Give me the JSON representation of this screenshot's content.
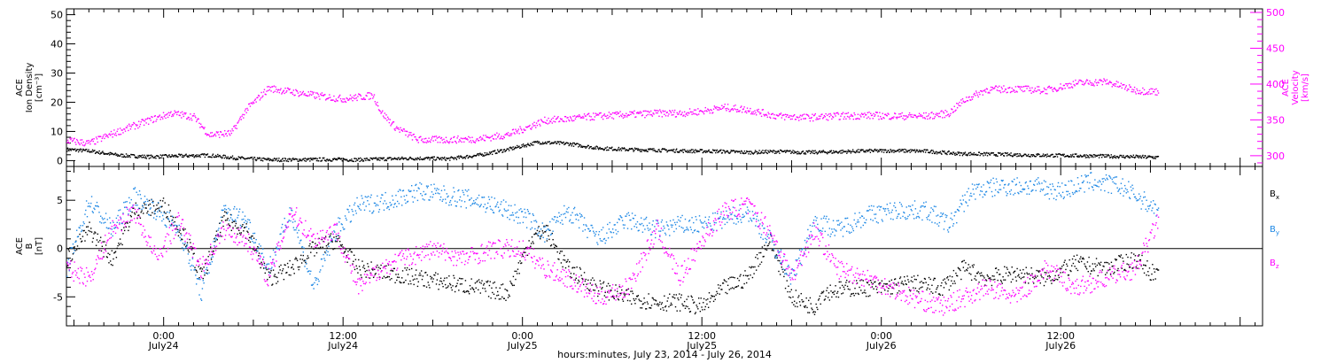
{
  "colors": {
    "black": "#000000",
    "magenta": "#ff00ff",
    "blue": "#1e88e5",
    "frame": "#000000"
  },
  "xlabel": "hours:minutes, July 23, 2014 - July 26, 2014",
  "x_ticks": [
    {
      "time": "0:00",
      "date": "July24",
      "hour": 24
    },
    {
      "time": "12:00",
      "date": "July24",
      "hour": 36
    },
    {
      "time": "0:00",
      "date": "July25",
      "hour": 48
    },
    {
      "time": "12:00",
      "date": "July25",
      "hour": 60
    },
    {
      "time": "0:00",
      "date": "July26",
      "hour": 72
    },
    {
      "time": "12:00",
      "date": "July26",
      "hour": 84
    }
  ],
  "chart_data": [
    {
      "type": "scatter",
      "panel": "top",
      "xlim_hours": [
        17.5,
        97.5
      ],
      "left_axis": {
        "label_lines": [
          "ACE",
          "Ion Density",
          "[cm⁻³]"
        ],
        "ylim": [
          -2,
          52
        ],
        "ticks": [
          0,
          10,
          20,
          30,
          40,
          50
        ],
        "color": "#000000"
      },
      "right_axis": {
        "label_lines": [
          "ACE",
          "Velocity",
          "[km/s]"
        ],
        "ylim": [
          285,
          505
        ],
        "ticks": [
          300,
          350,
          400,
          450,
          500
        ],
        "color": "#ff00ff"
      },
      "series": [
        {
          "name": "Ion Density",
          "axis": "left",
          "color": "#000000",
          "x": [
            17.5,
            19,
            21,
            23,
            25,
            27,
            29,
            31,
            33,
            35,
            37,
            39,
            41,
            43,
            45,
            47,
            49,
            51,
            53,
            55,
            57,
            59,
            61,
            63,
            65,
            67,
            69,
            71,
            73,
            75,
            77,
            79,
            81,
            83,
            85,
            87,
            89,
            90.5
          ],
          "y": [
            4,
            3.5,
            2,
            1.5,
            1.8,
            2,
            1,
            0.5,
            0.5,
            0.6,
            0.5,
            0.8,
            1,
            0.8,
            2,
            4,
            6.5,
            6,
            4.5,
            4,
            3.8,
            3.5,
            3.4,
            3,
            3.3,
            3,
            3.2,
            3.5,
            3.6,
            3.4,
            2.6,
            2.4,
            2.2,
            2,
            1.9,
            1.7,
            1.5,
            1.3
          ]
        },
        {
          "name": "Velocity",
          "axis": "right",
          "color": "#ff00ff",
          "x": [
            17.5,
            19,
            21,
            23,
            24.5,
            26,
            27,
            28.5,
            29.5,
            31,
            32.5,
            34,
            36,
            38,
            38.5,
            39.5,
            41,
            43,
            45,
            47,
            48.5,
            49.5,
            51,
            53,
            55,
            57,
            58.5,
            60,
            61.5,
            63,
            65,
            67,
            69,
            71,
            73,
            75,
            76.5,
            77.5,
            79,
            81,
            83,
            85,
            87,
            89,
            90.5
          ],
          "y": [
            322,
            318,
            335,
            350,
            360,
            355,
            330,
            332,
            365,
            395,
            390,
            385,
            380,
            385,
            362,
            340,
            323,
            323,
            324,
            330,
            342,
            350,
            352,
            356,
            358,
            360,
            360,
            363,
            368,
            365,
            356,
            354,
            356,
            357,
            356,
            356,
            360,
            378,
            393,
            394,
            392,
            402,
            404,
            392,
            390
          ]
        }
      ]
    },
    {
      "type": "scatter",
      "panel": "bottom",
      "xlim_hours": [
        17.5,
        97.5
      ],
      "ylabel_lines": [
        "ACE",
        "B",
        "[nT]"
      ],
      "ylim": [
        -8,
        8.5
      ],
      "ticks": [
        -5,
        0,
        5
      ],
      "zero_line": true,
      "legend_placement": "right",
      "series": [
        {
          "name": "Bx",
          "color": "#000000",
          "x": [
            17.5,
            19,
            20.5,
            22,
            24,
            25.5,
            26.5,
            28,
            29.5,
            31,
            32.5,
            34,
            35.5,
            37,
            39,
            41,
            43,
            45,
            47,
            48.5,
            49.5,
            51,
            53,
            55,
            57,
            58.5,
            60,
            61.5,
            63,
            64.5,
            66,
            67.5,
            68,
            70,
            72,
            74,
            76,
            77.5,
            79,
            81,
            83,
            85,
            87,
            89,
            90.5
          ],
          "y": [
            -1,
            2,
            -1,
            4,
            4.5,
            1,
            -3,
            3,
            2,
            -3,
            -2,
            0,
            1,
            -2,
            -2.5,
            -3,
            -3.5,
            -4,
            -4.5,
            1,
            2,
            -2,
            -4,
            -5,
            -5.5,
            -5.5,
            -6,
            -4,
            -3,
            1,
            -5,
            -6,
            -4.5,
            -4,
            -4,
            -3.5,
            -4,
            -2,
            -3,
            -2.5,
            -3,
            -1.5,
            -2,
            -1,
            -3
          ]
        },
        {
          "name": "By",
          "color": "#1e88e5",
          "x": [
            17.5,
            19,
            20.5,
            22,
            23.5,
            25,
            26.5,
            28,
            29.5,
            31,
            32.5,
            34,
            35.5,
            37,
            39,
            41,
            43,
            45,
            47,
            48.5,
            49.5,
            51,
            53,
            55,
            57,
            58.5,
            60,
            61.5,
            63,
            64.5,
            66,
            67.5,
            69,
            71,
            73,
            75,
            76.5,
            78,
            80,
            82,
            84,
            86,
            88,
            90.5
          ],
          "y": [
            -2,
            5,
            2,
            5.5,
            4,
            2,
            -4.5,
            4,
            3,
            -2,
            4,
            -4,
            2,
            4.5,
            5,
            6,
            5.5,
            5,
            4,
            3,
            1.5,
            4,
            1,
            3,
            2,
            2.5,
            2.5,
            3,
            4,
            1,
            -3,
            3,
            2,
            3.5,
            4,
            4,
            2.5,
            6,
            6.5,
            6.5,
            6,
            7,
            6.5,
            4
          ]
        },
        {
          "name": "Bz",
          "color": "#ff00ff",
          "x": [
            17.5,
            19,
            20.5,
            22,
            23.5,
            25,
            26.5,
            28,
            29.5,
            31,
            32.5,
            34,
            35.5,
            37,
            38.5,
            40,
            42,
            44,
            46,
            48,
            49.5,
            51,
            53,
            55,
            57,
            58.5,
            60,
            61.5,
            63,
            64.5,
            66,
            67.5,
            69,
            71,
            72.5,
            74,
            76,
            77.5,
            79,
            81,
            83,
            85,
            87,
            89,
            90.5
          ],
          "y": [
            -2,
            -3,
            2,
            4,
            -1,
            3,
            -2,
            2,
            1,
            -3,
            4,
            1,
            2,
            -4,
            -2,
            -1,
            0,
            -1,
            0,
            0,
            -2,
            -3,
            -5,
            -4,
            2,
            -3,
            1,
            4,
            4.5,
            2,
            -3,
            2,
            -2,
            -3,
            -4,
            -5,
            -6,
            -5,
            -4,
            -5,
            -2,
            -4,
            -3,
            -2,
            3
          ]
        }
      ]
    }
  ]
}
